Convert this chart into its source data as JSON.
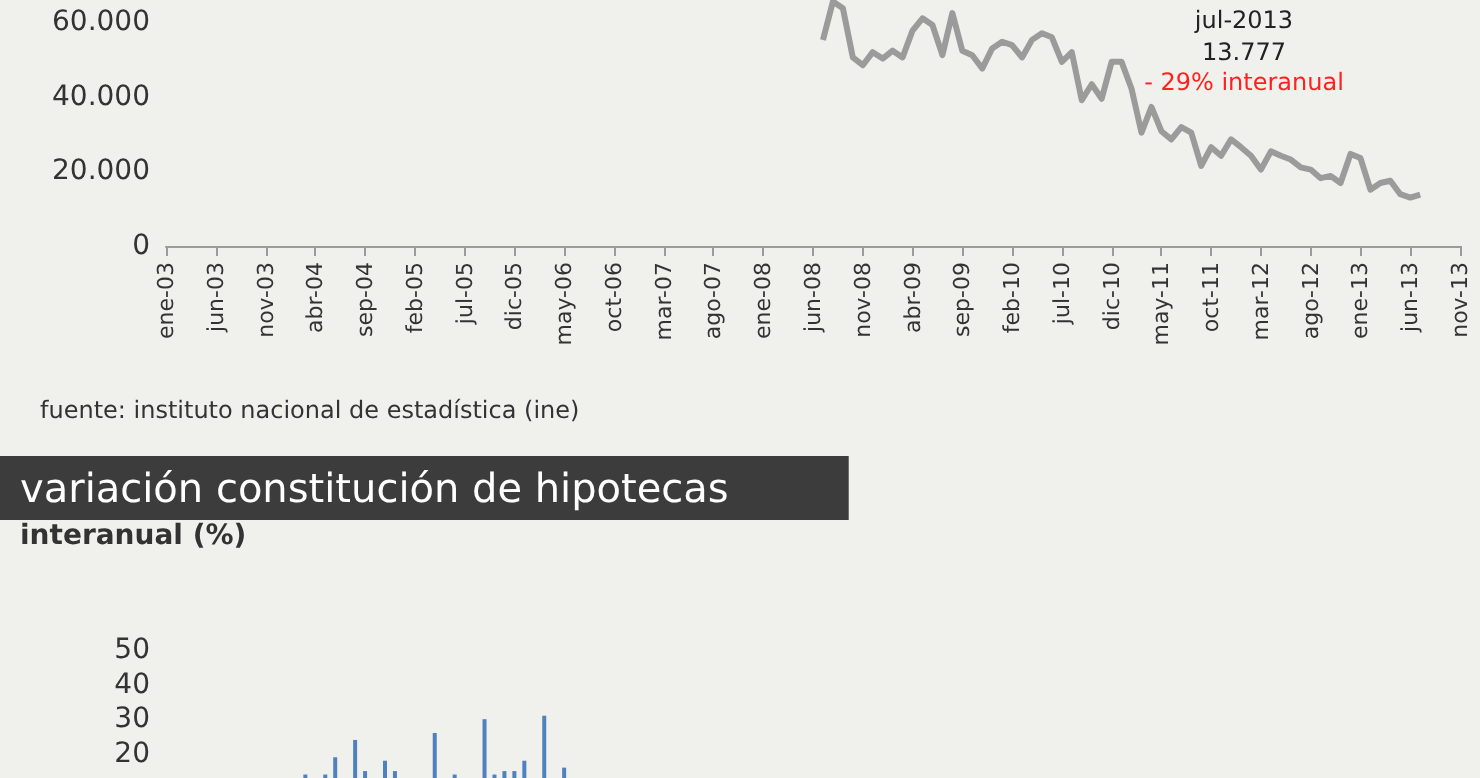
{
  "chart_data": [
    {
      "type": "line",
      "color": "#9b9b9b",
      "categories": [
        "ene-03",
        null,
        null,
        null,
        null,
        "jun-03",
        null,
        null,
        null,
        null,
        "nov-03",
        null,
        null,
        null,
        null,
        "abr-04",
        null,
        null,
        null,
        null,
        "sep-04",
        null,
        null,
        null,
        null,
        "feb-05",
        null,
        null,
        null,
        null,
        "jul-05",
        null,
        null,
        null,
        null,
        "dic-05",
        null,
        null,
        null,
        null,
        "may-06",
        null,
        null,
        null,
        null,
        "oct-06",
        null,
        null,
        null,
        null,
        "mar-07",
        null,
        null,
        null,
        null,
        "ago-07",
        null,
        null,
        null,
        null,
        "ene-08",
        null,
        null,
        null,
        null,
        "jun-08",
        null,
        null,
        null,
        null,
        "nov-08",
        null,
        null,
        null,
        null,
        "abr-09",
        null,
        null,
        null,
        null,
        "sep-09",
        null,
        null,
        null,
        null,
        "feb-10",
        null,
        null,
        null,
        null,
        "jul-10",
        null,
        null,
        null,
        null,
        "dic-10",
        null,
        null,
        null,
        null,
        "may-11",
        null,
        null,
        null,
        null,
        "oct-11",
        null,
        null,
        null,
        null,
        "mar-12",
        null,
        null,
        null,
        null,
        "ago-12",
        null,
        null,
        null,
        null,
        "ene-13",
        null,
        null,
        null,
        null,
        "jun-13",
        null,
        null,
        null,
        null,
        "nov-13"
      ],
      "values": [
        null,
        null,
        null,
        null,
        null,
        null,
        null,
        null,
        null,
        null,
        null,
        null,
        null,
        null,
        null,
        null,
        null,
        null,
        null,
        null,
        null,
        null,
        null,
        null,
        null,
        null,
        null,
        null,
        null,
        null,
        null,
        null,
        null,
        null,
        null,
        null,
        null,
        null,
        null,
        null,
        null,
        null,
        null,
        null,
        null,
        null,
        null,
        null,
        null,
        null,
        null,
        null,
        null,
        null,
        null,
        null,
        null,
        null,
        null,
        null,
        null,
        null,
        null,
        null,
        null,
        null,
        55300,
        65600,
        63800,
        50600,
        48500,
        52000,
        50300,
        52400,
        50600,
        57800,
        61100,
        59300,
        51200,
        62500,
        52400,
        51200,
        47600,
        53000,
        54800,
        53900,
        50600,
        55300,
        57100,
        56000,
        49400,
        52000,
        39100,
        43400,
        39500,
        49400,
        49400,
        42200,
        30400,
        37300,
        30800,
        28600,
        31900,
        30400,
        21500,
        26500,
        24200,
        28600,
        26500,
        24200,
        20500,
        25400,
        24200,
        23200,
        21100,
        20500,
        18200,
        18800,
        16900,
        24700,
        23600,
        15100,
        16900,
        17500,
        13900,
        13000,
        13777,
        null,
        null,
        null,
        null
      ],
      "ylim": [
        0,
        66000
      ],
      "yticks": [
        0,
        {
          "value": 20000,
          "label": "20.000"
        },
        {
          "value": 40000,
          "label": "40.000"
        },
        {
          "value": 60000,
          "label": "60.000"
        }
      ],
      "annotations": [
        "jul-2013",
        "13.777",
        "- 29% interanual",
        "fuente: instituto nacional de estadística (ine)"
      ]
    },
    {
      "type": "bar",
      "title": "variación constitución de hipotecas",
      "ylabel": "interanual (%)",
      "color": "#4f81bd",
      "tick_labels": "y",
      "categories": [
        null,
        null,
        null,
        null,
        null,
        null,
        null,
        null,
        null,
        null,
        null,
        null,
        null,
        null,
        null,
        null,
        null,
        null,
        null,
        null,
        null,
        null,
        null,
        null,
        null,
        null,
        null,
        null,
        null,
        null,
        null,
        null,
        null,
        null,
        null,
        null,
        null,
        null,
        null,
        null,
        null,
        null,
        null,
        null,
        null,
        null,
        null,
        null,
        null,
        null,
        null,
        null,
        null,
        null,
        null,
        null,
        null,
        null,
        null,
        null,
        null,
        null,
        null,
        null,
        null,
        null,
        null,
        null,
        null,
        null,
        null,
        null,
        null,
        null,
        null,
        null,
        null,
        null,
        null,
        null,
        null,
        null,
        null,
        null,
        null,
        null,
        null,
        null,
        null,
        null,
        null,
        null,
        null,
        null,
        null,
        null,
        null,
        null,
        null,
        null,
        null,
        null,
        null,
        null,
        null,
        null,
        null,
        null,
        null,
        null,
        null,
        null,
        null,
        null,
        null,
        null,
        null,
        null,
        null,
        null,
        null,
        null,
        null,
        null,
        null,
        null,
        null,
        null,
        null,
        null,
        null
      ],
      "values": [
        null,
        null,
        null,
        null,
        null,
        null,
        null,
        null,
        null,
        null,
        null,
        null,
        null,
        null,
        14,
        null,
        14,
        19,
        null,
        24,
        15,
        null,
        18,
        15,
        null,
        null,
        null,
        26,
        null,
        14,
        null,
        null,
        30,
        14,
        15,
        15,
        18,
        null,
        31,
        null,
        16,
        null,
        null,
        null,
        null,
        null,
        null,
        null,
        null,
        null,
        null,
        null,
        null,
        null,
        null,
        null,
        null,
        null,
        null,
        null,
        null,
        null,
        null,
        null,
        null,
        null,
        null,
        null,
        null,
        null,
        null,
        null,
        null,
        null,
        null,
        null,
        null,
        null,
        null,
        null,
        null,
        null,
        null,
        null,
        null,
        null,
        null,
        null,
        null,
        null,
        null,
        null,
        null,
        null,
        null,
        null,
        null,
        null,
        null,
        null,
        null,
        null,
        null,
        null,
        null,
        null,
        null,
        null,
        null,
        null,
        null,
        null,
        null,
        null,
        null,
        null,
        null,
        null,
        null,
        null,
        null,
        null,
        null,
        null,
        null,
        null,
        null,
        null,
        null,
        null,
        null
      ],
      "ylim": [
        13,
        50
      ],
      "yticks": [
        20,
        30,
        40,
        50
      ]
    }
  ]
}
